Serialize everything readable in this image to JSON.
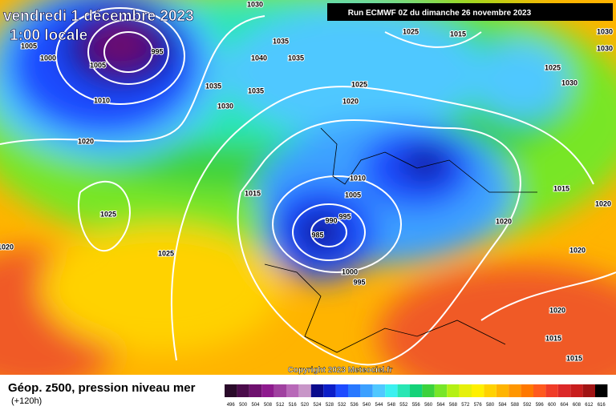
{
  "header": {
    "date": "vendredi 1 décembre 2023",
    "time": "1:00 locale",
    "run": "Run ECMWF 0Z du dimanche 26 novembre 2023"
  },
  "footer": {
    "title": "Géop. z500, pression niveau mer",
    "lead": "(+120h)",
    "copyright": "Copyright 2023 Meteociel.fr"
  },
  "isobar_labels": [
    "1030",
    "1005",
    "1000",
    "1005",
    "995",
    "1010",
    "1035",
    "1040",
    "1035",
    "1035",
    "1035",
    "1030",
    "1020",
    "1025",
    "1025",
    "1015",
    "1020",
    "1025",
    "1015",
    "1030",
    "1030",
    "1025",
    "1030",
    "1025",
    "1020",
    "1010",
    "1005",
    "995",
    "990",
    "985",
    "1000",
    "995",
    "1020",
    "1015",
    "1020",
    "1020",
    "1020",
    "1015",
    "1015"
  ],
  "colorbar": {
    "labels": [
      "496",
      "500",
      "504",
      "508",
      "512",
      "516",
      "520",
      "524",
      "528",
      "532",
      "536",
      "540",
      "544",
      "548",
      "552",
      "556",
      "560",
      "564",
      "568",
      "572",
      "576",
      "580",
      "584",
      "588",
      "592",
      "596",
      "600",
      "604",
      "608",
      "612",
      "616"
    ],
    "colors": [
      "#2a0a2a",
      "#4b0c4b",
      "#6e106e",
      "#8e1a8e",
      "#a040a0",
      "#b868b8",
      "#c896c8",
      "#0a0a8c",
      "#0c1ec8",
      "#1e4bff",
      "#2878ff",
      "#3ca0ff",
      "#50c8ff",
      "#3cf0f0",
      "#28e6b4",
      "#14d278",
      "#3cd23c",
      "#78e628",
      "#b4f014",
      "#e6f00a",
      "#fff000",
      "#ffd200",
      "#ffb400",
      "#ff9600",
      "#ff7800",
      "#ff5a1e",
      "#f03c28",
      "#dc2828",
      "#c81e1e",
      "#a01414",
      "#000000"
    ]
  }
}
